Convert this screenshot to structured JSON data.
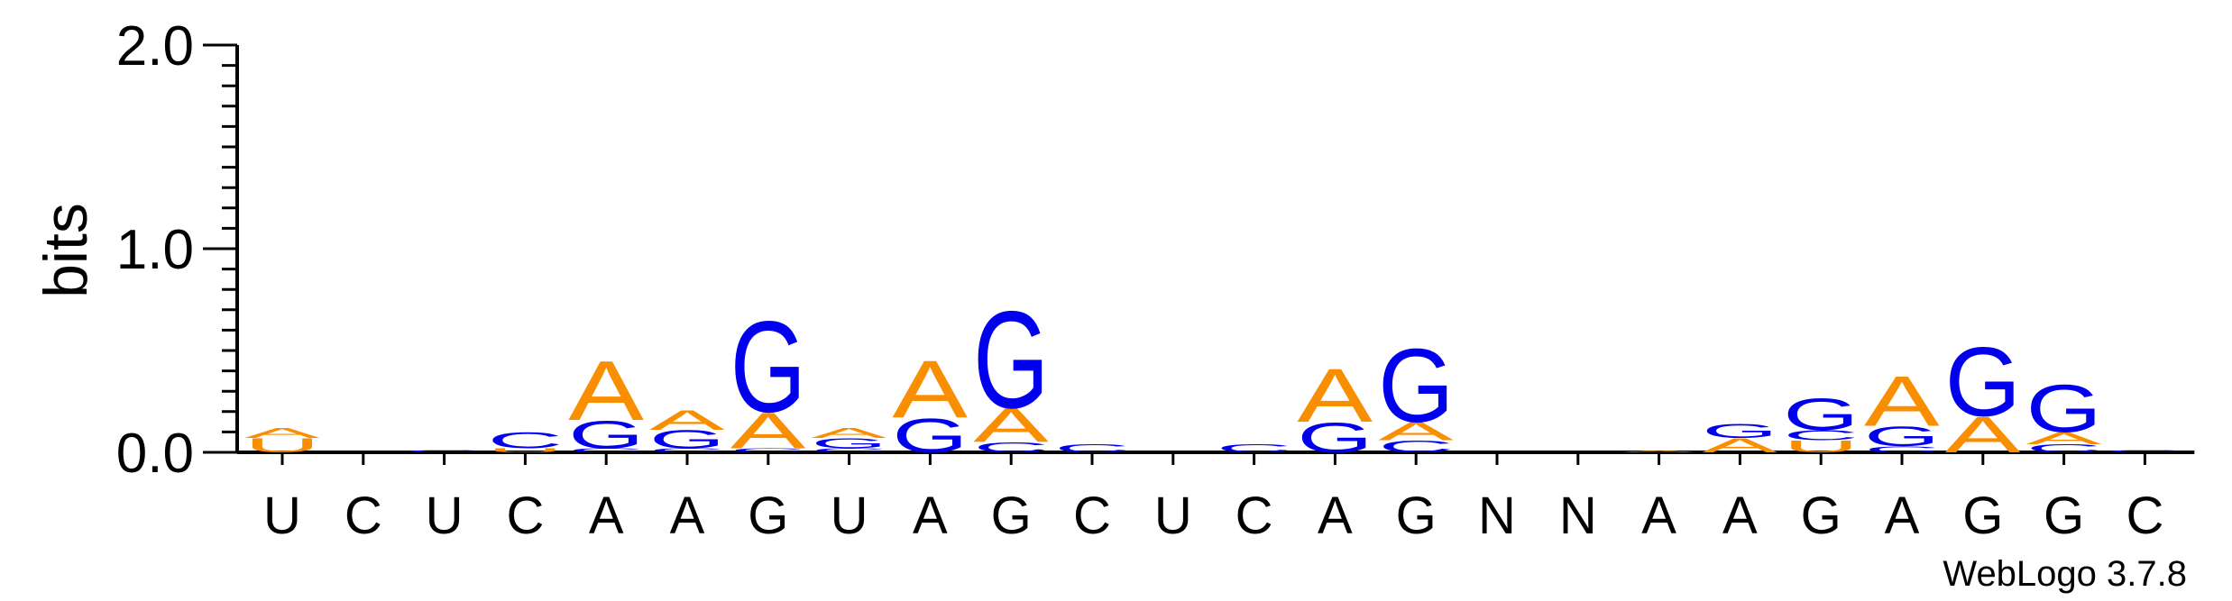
{
  "chart_data": {
    "type": "sequence-logo",
    "ylabel": "bits",
    "ylim": [
      0,
      2.0
    ],
    "yticks": [
      "0.0",
      "1.0",
      "2.0"
    ],
    "colors": {
      "A": "#f88e00",
      "G": "#0000ee",
      "C": "#0000ee",
      "U": "#f88e00"
    },
    "positions": [
      {
        "label": "U",
        "stack": [
          {
            "letter": "U",
            "bits": 0.07
          },
          {
            "letter": "A",
            "bits": 0.05
          }
        ]
      },
      {
        "label": "C",
        "stack": []
      },
      {
        "label": "U",
        "stack": [
          {
            "letter": "C",
            "bits": 0.01
          }
        ]
      },
      {
        "label": "C",
        "stack": [
          {
            "letter": "U",
            "bits": 0.02
          },
          {
            "letter": "C",
            "bits": 0.08
          }
        ]
      },
      {
        "label": "A",
        "stack": [
          {
            "letter": "C",
            "bits": 0.02
          },
          {
            "letter": "G",
            "bits": 0.14
          },
          {
            "letter": "A",
            "bits": 0.3
          }
        ]
      },
      {
        "label": "A",
        "stack": [
          {
            "letter": "C",
            "bits": 0.02
          },
          {
            "letter": "G",
            "bits": 0.09
          },
          {
            "letter": "A",
            "bits": 0.1
          }
        ]
      },
      {
        "label": "G",
        "stack": [
          {
            "letter": "C",
            "bits": 0.02
          },
          {
            "letter": "A",
            "bits": 0.18
          },
          {
            "letter": "G",
            "bits": 0.46
          }
        ]
      },
      {
        "label": "U",
        "stack": [
          {
            "letter": "C",
            "bits": 0.02
          },
          {
            "letter": "G",
            "bits": 0.05
          },
          {
            "letter": "A",
            "bits": 0.05
          }
        ]
      },
      {
        "label": "A",
        "stack": [
          {
            "letter": "G",
            "bits": 0.17
          },
          {
            "letter": "A",
            "bits": 0.29
          }
        ]
      },
      {
        "label": "G",
        "stack": [
          {
            "letter": "C",
            "bits": 0.05
          },
          {
            "letter": "A",
            "bits": 0.17
          },
          {
            "letter": "G",
            "bits": 0.49
          }
        ]
      },
      {
        "label": "C",
        "stack": [
          {
            "letter": "C",
            "bits": 0.04
          }
        ]
      },
      {
        "label": "U",
        "stack": []
      },
      {
        "label": "C",
        "stack": [
          {
            "letter": "C",
            "bits": 0.04
          }
        ]
      },
      {
        "label": "A",
        "stack": [
          {
            "letter": "G",
            "bits": 0.15
          },
          {
            "letter": "A",
            "bits": 0.27
          }
        ]
      },
      {
        "label": "G",
        "stack": [
          {
            "letter": "C",
            "bits": 0.06
          },
          {
            "letter": "A",
            "bits": 0.09
          },
          {
            "letter": "G",
            "bits": 0.37
          }
        ]
      },
      {
        "label": "N",
        "stack": []
      },
      {
        "label": "N",
        "stack": []
      },
      {
        "label": "A",
        "stack": [
          {
            "letter": "A",
            "bits": 0.01
          }
        ]
      },
      {
        "label": "A",
        "stack": [
          {
            "letter": "A",
            "bits": 0.07
          },
          {
            "letter": "G",
            "bits": 0.07
          }
        ]
      },
      {
        "label": "G",
        "stack": [
          {
            "letter": "U",
            "bits": 0.06
          },
          {
            "letter": "C",
            "bits": 0.05
          },
          {
            "letter": "G",
            "bits": 0.16
          }
        ]
      },
      {
        "label": "A",
        "stack": [
          {
            "letter": "C",
            "bits": 0.03
          },
          {
            "letter": "G",
            "bits": 0.1
          },
          {
            "letter": "A",
            "bits": 0.25
          }
        ]
      },
      {
        "label": "G",
        "stack": [
          {
            "letter": "A",
            "bits": 0.18
          },
          {
            "letter": "G",
            "bits": 0.35
          }
        ]
      },
      {
        "label": "G",
        "stack": [
          {
            "letter": "C",
            "bits": 0.04
          },
          {
            "letter": "A",
            "bits": 0.06
          },
          {
            "letter": "G",
            "bits": 0.24
          }
        ]
      },
      {
        "label": "C",
        "stack": [
          {
            "letter": "C",
            "bits": 0.01
          }
        ]
      }
    ]
  },
  "footer": {
    "credit": "WebLogo 3.7.8"
  }
}
